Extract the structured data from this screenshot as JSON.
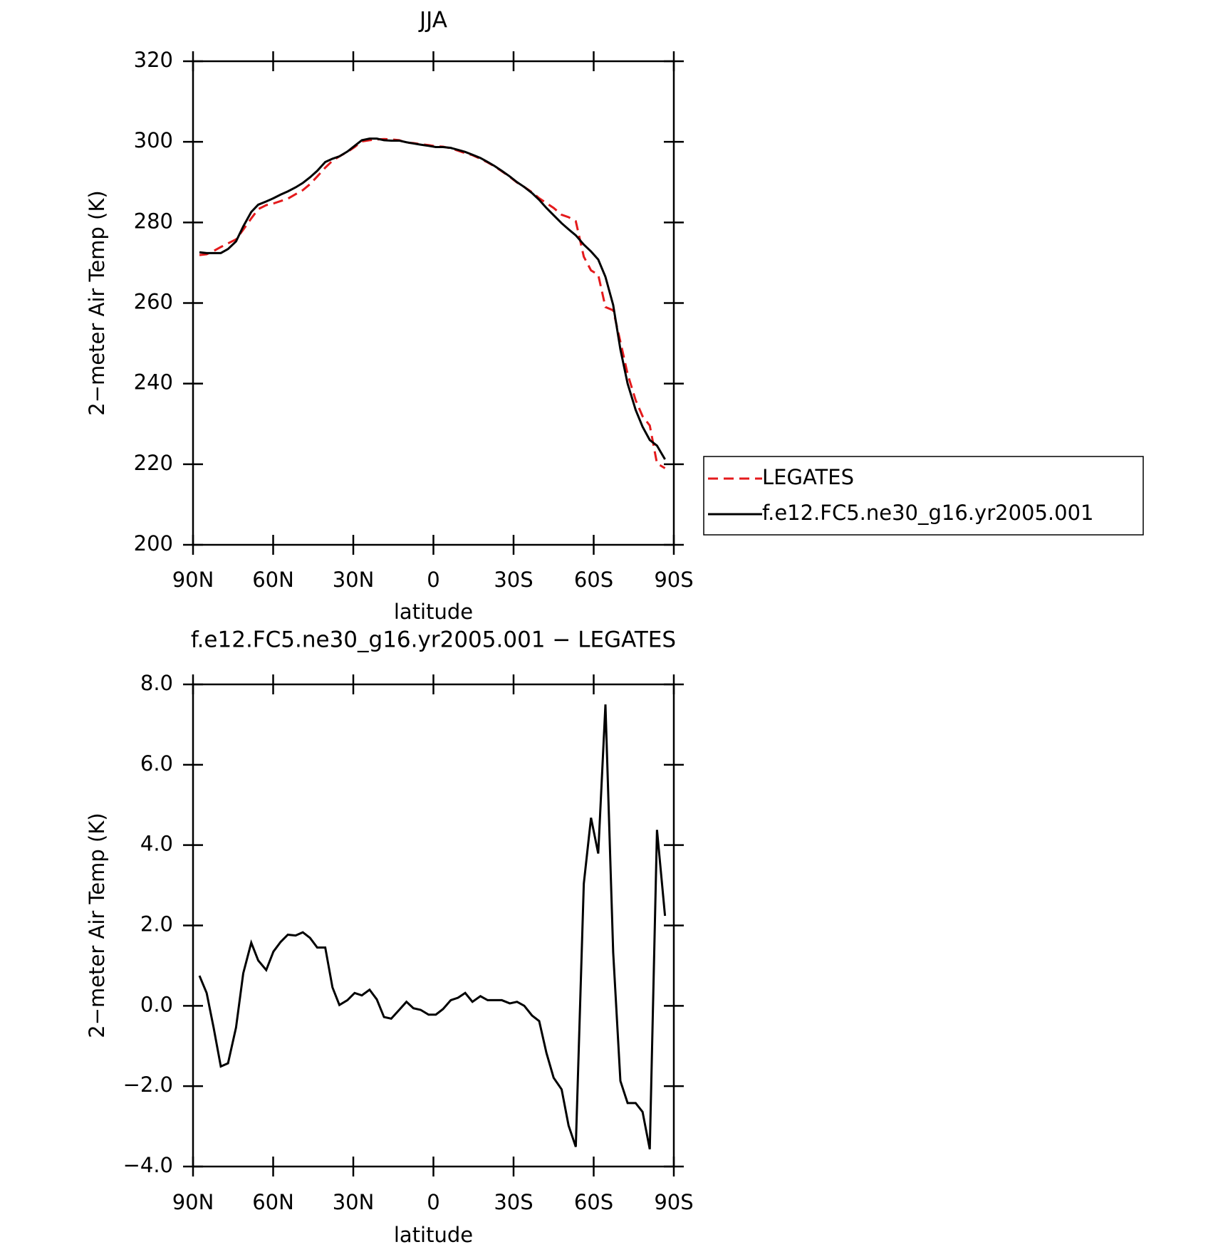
{
  "chart_data": [
    {
      "type": "line",
      "title": "JJA",
      "xlabel": "latitude",
      "ylabel": "2−meter Air Temp (K)",
      "x": [
        87.6,
        84.9,
        82.3,
        79.6,
        76.9,
        73.9,
        71.2,
        68.2,
        65.6,
        62.6,
        59.9,
        57.2,
        54.5,
        51.6,
        48.9,
        46.2,
        43.5,
        40.5,
        37.8,
        35.2,
        32.2,
        29.5,
        26.8,
        23.9,
        21.2,
        18.5,
        15.8,
        12.8,
        10.1,
        7.5,
        4.8,
        1.8,
        -0.9,
        -3.6,
        -6.5,
        -9.2,
        -11.9,
        -14.6,
        -17.6,
        -20.3,
        -22.9,
        -25.6,
        -28.6,
        -31.3,
        -34.0,
        -36.9,
        -39.6,
        -42.3,
        -45.0,
        -48.0,
        -50.6,
        -53.3,
        -56.3,
        -59.0,
        -61.7,
        -64.4,
        -67.3,
        -70.0,
        -72.7,
        -75.7,
        -78.3,
        -81.0,
        -83.7,
        -86.7
      ],
      "series": [
        {
          "name": "LEGATES",
          "color": "#e41a1c",
          "dashed": true,
          "values": [
            271.9,
            272.1,
            272.9,
            273.9,
            274.8,
            275.8,
            278.2,
            281.0,
            283.3,
            284.3,
            284.7,
            285.3,
            285.9,
            287.0,
            288.0,
            289.5,
            291.4,
            293.6,
            295.3,
            296.4,
            297.5,
            298.7,
            300.1,
            300.4,
            300.6,
            300.7,
            300.6,
            300.4,
            299.8,
            299.7,
            299.4,
            299.2,
            298.9,
            298.8,
            298.4,
            297.8,
            297.2,
            296.7,
            295.8,
            294.9,
            293.9,
            292.7,
            291.3,
            289.9,
            288.8,
            287.5,
            286.0,
            284.8,
            283.6,
            281.9,
            281.3,
            280.3,
            271.5,
            268.1,
            267.0,
            259.0,
            258.2,
            250.4,
            242.4,
            235.9,
            231.9,
            229.6,
            220.2,
            219.0
          ]
        },
        {
          "name": "f.e12.FC5.ne30_g16.yr2005.001",
          "color": "#000000",
          "dashed": false,
          "values": [
            272.6,
            272.4,
            272.4,
            272.4,
            273.4,
            275.3,
            279.0,
            282.6,
            284.4,
            285.2,
            286.0,
            286.9,
            287.7,
            288.7,
            289.8,
            291.2,
            292.8,
            295.0,
            295.8,
            296.4,
            297.6,
            299.0,
            300.4,
            300.8,
            300.8,
            300.4,
            300.3,
            300.3,
            299.9,
            299.6,
            299.3,
            299.0,
            298.7,
            298.7,
            298.5,
            298.0,
            297.5,
            296.8,
            296.0,
            295.0,
            294.0,
            292.8,
            291.4,
            290.0,
            288.8,
            287.3,
            285.6,
            283.6,
            281.8,
            279.8,
            278.3,
            276.8,
            274.5,
            272.8,
            270.8,
            266.5,
            259.5,
            248.5,
            240.0,
            233.5,
            229.3,
            226.0,
            224.6,
            221.2
          ]
        }
      ],
      "xlim": [
        90,
        -90
      ],
      "xticks": [
        {
          "value": 90,
          "label": "90N"
        },
        {
          "value": 60,
          "label": "60N"
        },
        {
          "value": 30,
          "label": "30N"
        },
        0,
        {
          "value": -30,
          "label": "30S"
        },
        {
          "value": -60,
          "label": "60S"
        },
        {
          "value": -90,
          "label": "90S"
        }
      ],
      "ylim": [
        200,
        320
      ],
      "yticks": [
        200,
        220,
        240,
        260,
        280,
        300,
        320
      ],
      "legend": "right"
    },
    {
      "type": "line",
      "title": "f.e12.FC5.ne30_g16.yr2005.001 − LEGATES",
      "xlabel": "latitude",
      "ylabel": "2−meter Air Temp (K)",
      "x": [
        87.6,
        84.9,
        82.3,
        79.6,
        76.9,
        73.9,
        71.2,
        68.2,
        65.6,
        62.6,
        59.9,
        57.2,
        54.5,
        51.6,
        48.9,
        46.2,
        43.5,
        40.5,
        37.8,
        35.2,
        32.2,
        29.5,
        26.8,
        23.9,
        21.2,
        18.5,
        15.8,
        12.8,
        10.1,
        7.5,
        4.8,
        1.8,
        -0.9,
        -3.6,
        -6.5,
        -9.2,
        -11.9,
        -14.6,
        -17.6,
        -20.3,
        -22.9,
        -25.6,
        -28.6,
        -31.3,
        -34.0,
        -36.9,
        -39.6,
        -42.3,
        -45.0,
        -48.0,
        -50.6,
        -53.3,
        -56.3,
        -59.0,
        -61.7,
        -64.4,
        -67.3,
        -70.0,
        -72.7,
        -75.7,
        -78.3,
        -81.0,
        -83.7,
        -86.7
      ],
      "values": [
        0.75,
        0.32,
        -0.54,
        -1.51,
        -1.43,
        -0.54,
        0.81,
        1.57,
        1.13,
        0.89,
        1.35,
        1.59,
        1.77,
        1.75,
        1.83,
        1.69,
        1.45,
        1.45,
        0.46,
        0.02,
        0.14,
        0.32,
        0.26,
        0.4,
        0.16,
        -0.28,
        -0.32,
        -0.1,
        0.1,
        -0.06,
        -0.1,
        -0.22,
        -0.22,
        -0.08,
        0.14,
        0.2,
        0.32,
        0.1,
        0.24,
        0.14,
        0.14,
        0.14,
        0.06,
        0.1,
        0.0,
        -0.24,
        -0.38,
        -1.17,
        -1.79,
        -2.08,
        -2.98,
        -3.51,
        3.04,
        4.68,
        3.79,
        7.5,
        1.33,
        -1.87,
        -2.42,
        -2.42,
        -2.64,
        -3.57,
        4.38,
        2.24
      ],
      "color": "#000000",
      "xlim": [
        90,
        -90
      ],
      "xticks": [
        {
          "value": 90,
          "label": "90N"
        },
        {
          "value": 60,
          "label": "60N"
        },
        {
          "value": 30,
          "label": "30N"
        },
        0,
        {
          "value": -30,
          "label": "30S"
        },
        {
          "value": -60,
          "label": "60S"
        },
        {
          "value": -90,
          "label": "90S"
        }
      ],
      "ylim": [
        -4,
        8
      ],
      "yticks": [
        {
          "value": -4,
          "label": "−4.0"
        },
        {
          "value": -2,
          "label": "−2.0"
        },
        {
          "value": 0,
          "label": "0.0"
        },
        {
          "value": 2,
          "label": "2.0"
        },
        {
          "value": 4,
          "label": "4.0"
        },
        {
          "value": 6,
          "label": "6.0"
        },
        {
          "value": 8,
          "label": "8.0"
        }
      ]
    }
  ]
}
